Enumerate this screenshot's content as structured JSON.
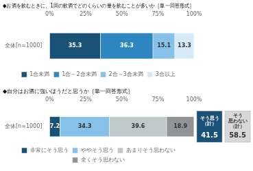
{
  "chart_data": [
    {
      "type": "bar",
      "title": "◆お酒を飲むときに、1回の飲酒でどのくらいの量を飲むことが多いか［単一回答形式］",
      "orientation": "horizontal",
      "stacked": true,
      "categories": [
        "全体[n=1000]"
      ],
      "series": [
        {
          "name": "1合未満",
          "color": "#1a5276",
          "values": [
            35.3
          ]
        },
        {
          "name": "1合～2合未満",
          "color": "#2e86c1",
          "values": [
            36.3
          ]
        },
        {
          "name": "2合～3合未満",
          "color": "#85c1e9",
          "values": [
            15.1
          ]
        },
        {
          "name": "3合以上",
          "color": "#d6eaf8",
          "values": [
            13.3
          ]
        }
      ],
      "xlim": [
        0,
        100
      ],
      "xticks": [
        {
          "value": 0,
          "label": "0%"
        },
        {
          "value": 25,
          "label": "25%"
        },
        {
          "value": 50,
          "label": "50%"
        },
        {
          "value": 75,
          "label": "75%"
        },
        {
          "value": 100,
          "label": "100%"
        }
      ],
      "data_labels": true,
      "legend": "bottom",
      "grid": false
    },
    {
      "type": "bar",
      "title": "◆自分はお酒に強いほうだと思うか［単一回答形式］",
      "orientation": "horizontal",
      "stacked": true,
      "categories": [
        "全体[n=1000]"
      ],
      "series": [
        {
          "name": "非常にそう思う",
          "color": "#1a5276",
          "values": [
            7.2
          ]
        },
        {
          "name": "ややそう思う",
          "color": "#85c1e9",
          "values": [
            34.3
          ]
        },
        {
          "name": "あまりそう思わない",
          "color": "#bfc9ca",
          "values": [
            39.6
          ]
        },
        {
          "name": "全くそう思わない",
          "color": "#909497",
          "values": [
            18.9
          ]
        }
      ],
      "xlim": [
        0,
        100
      ],
      "xticks": [
        {
          "value": 0,
          "label": "0%"
        },
        {
          "value": 25,
          "label": "25%"
        },
        {
          "value": 50,
          "label": "50%"
        },
        {
          "value": 75,
          "label": "75%"
        },
        {
          "value": 100,
          "label": "100%"
        }
      ],
      "data_labels": true,
      "legend": "bottom",
      "grid": false,
      "annotations": [
        {
          "text": "そう思う\n（計）",
          "value": 41.5,
          "color": "#1a5276"
        },
        {
          "text": "そう\n思わない\n（計）",
          "value": 58.5,
          "color": "#d8d8d8"
        }
      ]
    }
  ]
}
